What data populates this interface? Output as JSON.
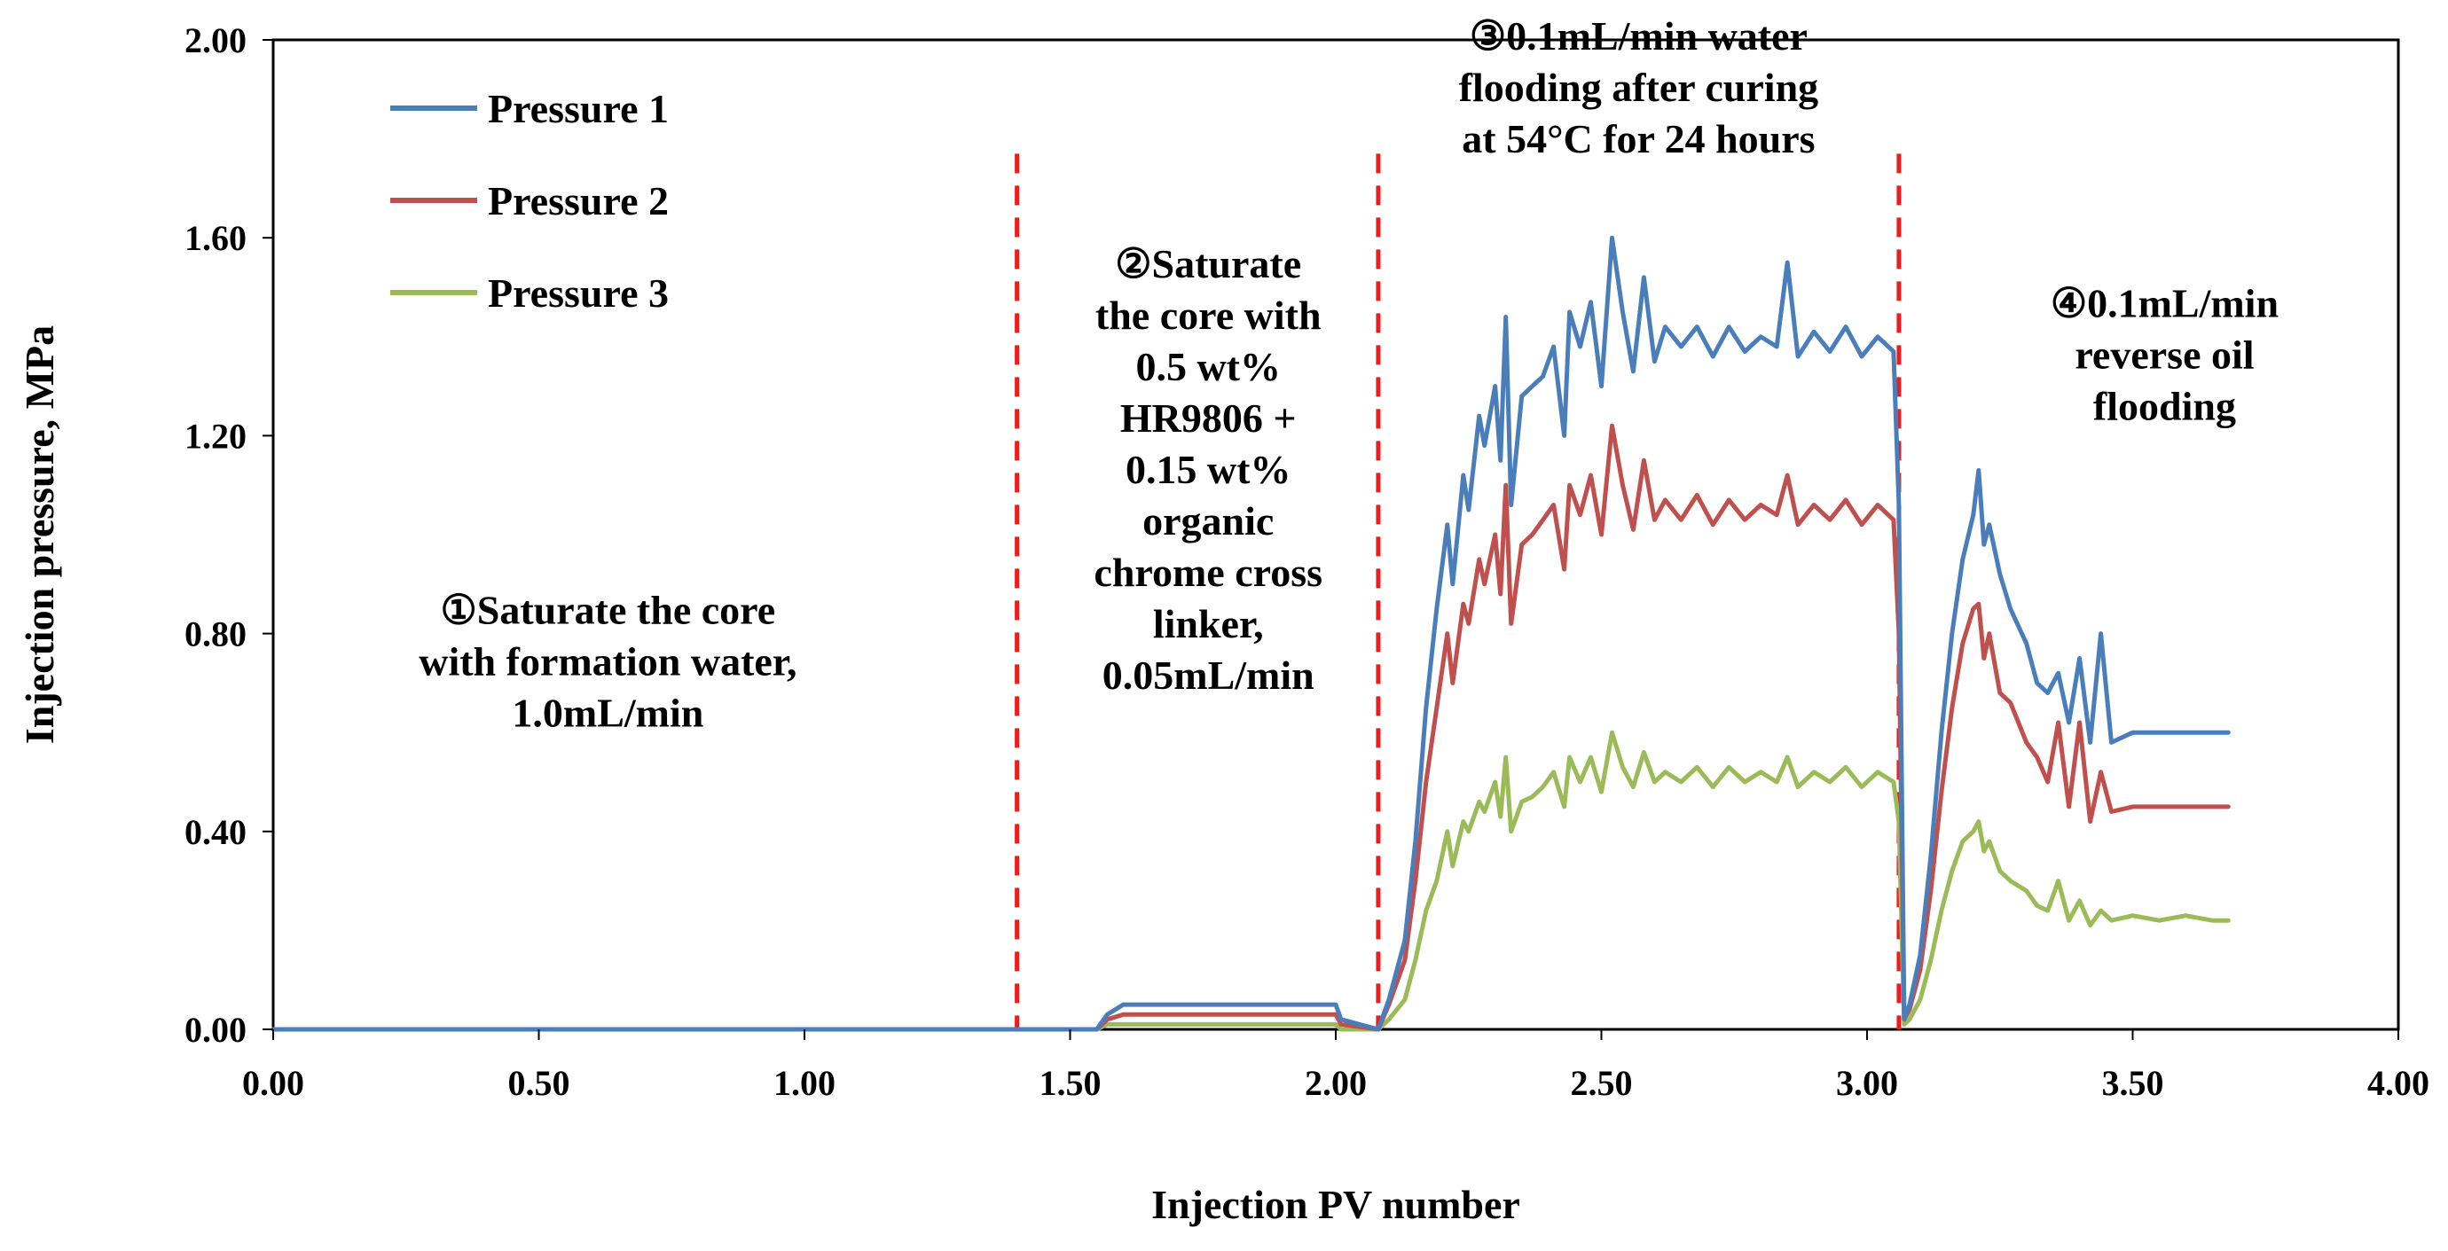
{
  "chart_data": {
    "type": "line",
    "title": "",
    "xlabel": "Injection PV number",
    "ylabel": "Injection pressure, MPa",
    "xlim": [
      0,
      4
    ],
    "ylim": [
      0,
      2
    ],
    "grid": false,
    "legend_position": "top-left",
    "x_tick_labels": [
      "0.00",
      "0.50",
      "1.00",
      "1.50",
      "2.00",
      "2.50",
      "3.00",
      "3.50",
      "4.00"
    ],
    "y_tick_labels": [
      "0.00",
      "0.40",
      "0.80",
      "1.20",
      "1.60",
      "2.00"
    ],
    "stage_boundaries": [
      1.4,
      2.08,
      3.06
    ],
    "annotations": [
      {
        "x": 0.63,
        "y": 0.82,
        "lines": [
          "①Saturate the core",
          "with formation water,",
          "1.0mL/min"
        ]
      },
      {
        "x": 1.76,
        "y": 1.52,
        "lines": [
          "②Saturate",
          "the core with",
          "0.5 wt%",
          "HR9806 +",
          "0.15 wt%",
          "organic",
          "chrome cross",
          "linker,",
          "0.05mL/min"
        ]
      },
      {
        "x": 2.57,
        "y": 1.98,
        "lines": [
          "③0.1mL/min water",
          "flooding after curing",
          "at 54°C for 24 hours"
        ]
      },
      {
        "x": 3.56,
        "y": 1.44,
        "lines": [
          "④0.1mL/min",
          "reverse oil",
          "flooding"
        ]
      }
    ],
    "series": [
      {
        "name": "Pressure 1",
        "color": "#4a7ebb",
        "x": [
          0.0,
          1.4,
          1.55,
          1.57,
          1.6,
          2.0,
          2.01,
          2.08,
          2.1,
          2.13,
          2.15,
          2.17,
          2.19,
          2.21,
          2.22,
          2.24,
          2.25,
          2.27,
          2.28,
          2.3,
          2.31,
          2.32,
          2.33,
          2.35,
          2.37,
          2.39,
          2.41,
          2.43,
          2.44,
          2.46,
          2.48,
          2.5,
          2.52,
          2.54,
          2.56,
          2.58,
          2.6,
          2.62,
          2.65,
          2.68,
          2.71,
          2.74,
          2.77,
          2.8,
          2.83,
          2.85,
          2.87,
          2.9,
          2.93,
          2.96,
          2.99,
          3.02,
          3.05,
          3.06,
          3.07,
          3.08,
          3.1,
          3.12,
          3.14,
          3.16,
          3.18,
          3.2,
          3.21,
          3.22,
          3.23,
          3.25,
          3.27,
          3.3,
          3.32,
          3.34,
          3.36,
          3.38,
          3.4,
          3.42,
          3.44,
          3.46,
          3.5,
          3.55,
          3.6,
          3.65,
          3.68
        ],
        "y": [
          0.0,
          0.0,
          0.0,
          0.03,
          0.05,
          0.05,
          0.02,
          0.0,
          0.06,
          0.18,
          0.38,
          0.65,
          0.85,
          1.02,
          0.9,
          1.12,
          1.05,
          1.24,
          1.18,
          1.3,
          1.15,
          1.44,
          1.06,
          1.28,
          1.3,
          1.32,
          1.38,
          1.2,
          1.45,
          1.38,
          1.47,
          1.3,
          1.6,
          1.45,
          1.33,
          1.52,
          1.35,
          1.42,
          1.38,
          1.42,
          1.36,
          1.42,
          1.37,
          1.4,
          1.38,
          1.55,
          1.36,
          1.41,
          1.37,
          1.42,
          1.36,
          1.4,
          1.37,
          1.06,
          0.02,
          0.05,
          0.15,
          0.35,
          0.6,
          0.8,
          0.95,
          1.04,
          1.13,
          0.98,
          1.02,
          0.92,
          0.85,
          0.78,
          0.7,
          0.68,
          0.72,
          0.62,
          0.75,
          0.58,
          0.8,
          0.58,
          0.6,
          0.6,
          0.6,
          0.6,
          0.6
        ]
      },
      {
        "name": "Pressure 2",
        "color": "#c0504d",
        "x": [
          0.0,
          1.4,
          1.55,
          1.57,
          1.6,
          2.0,
          2.01,
          2.08,
          2.1,
          2.13,
          2.15,
          2.17,
          2.19,
          2.21,
          2.22,
          2.24,
          2.25,
          2.27,
          2.28,
          2.3,
          2.31,
          2.32,
          2.33,
          2.35,
          2.37,
          2.39,
          2.41,
          2.43,
          2.44,
          2.46,
          2.48,
          2.5,
          2.52,
          2.54,
          2.56,
          2.58,
          2.6,
          2.62,
          2.65,
          2.68,
          2.71,
          2.74,
          2.77,
          2.8,
          2.83,
          2.85,
          2.87,
          2.9,
          2.93,
          2.96,
          2.99,
          3.02,
          3.05,
          3.06,
          3.07,
          3.08,
          3.1,
          3.12,
          3.14,
          3.16,
          3.18,
          3.2,
          3.21,
          3.22,
          3.23,
          3.25,
          3.27,
          3.3,
          3.32,
          3.34,
          3.36,
          3.38,
          3.4,
          3.42,
          3.44,
          3.46,
          3.5,
          3.55,
          3.6,
          3.65,
          3.68
        ],
        "y": [
          0.0,
          0.0,
          0.0,
          0.02,
          0.03,
          0.03,
          0.01,
          0.0,
          0.05,
          0.14,
          0.3,
          0.5,
          0.65,
          0.8,
          0.7,
          0.86,
          0.82,
          0.95,
          0.9,
          1.0,
          0.88,
          1.1,
          0.82,
          0.98,
          1.0,
          1.03,
          1.06,
          0.93,
          1.1,
          1.04,
          1.12,
          1.0,
          1.22,
          1.1,
          1.01,
          1.15,
          1.03,
          1.07,
          1.03,
          1.08,
          1.02,
          1.07,
          1.03,
          1.06,
          1.04,
          1.12,
          1.02,
          1.06,
          1.03,
          1.07,
          1.02,
          1.06,
          1.03,
          0.8,
          0.02,
          0.04,
          0.12,
          0.28,
          0.48,
          0.65,
          0.78,
          0.85,
          0.86,
          0.75,
          0.8,
          0.68,
          0.66,
          0.58,
          0.55,
          0.5,
          0.62,
          0.45,
          0.62,
          0.42,
          0.52,
          0.44,
          0.45,
          0.45,
          0.45,
          0.45,
          0.45
        ]
      },
      {
        "name": "Pressure 3",
        "color": "#9bbb59",
        "x": [
          0.0,
          1.4,
          1.55,
          1.57,
          1.6,
          2.0,
          2.01,
          2.08,
          2.1,
          2.13,
          2.15,
          2.17,
          2.19,
          2.21,
          2.22,
          2.24,
          2.25,
          2.27,
          2.28,
          2.3,
          2.31,
          2.32,
          2.33,
          2.35,
          2.37,
          2.39,
          2.41,
          2.43,
          2.44,
          2.46,
          2.48,
          2.5,
          2.52,
          2.54,
          2.56,
          2.58,
          2.6,
          2.62,
          2.65,
          2.68,
          2.71,
          2.74,
          2.77,
          2.8,
          2.83,
          2.85,
          2.87,
          2.9,
          2.93,
          2.96,
          2.99,
          3.02,
          3.05,
          3.06,
          3.07,
          3.08,
          3.1,
          3.12,
          3.14,
          3.16,
          3.18,
          3.2,
          3.21,
          3.22,
          3.23,
          3.25,
          3.27,
          3.3,
          3.32,
          3.34,
          3.36,
          3.38,
          3.4,
          3.42,
          3.44,
          3.46,
          3.5,
          3.55,
          3.6,
          3.65,
          3.68
        ],
        "y": [
          0.0,
          0.0,
          0.0,
          0.01,
          0.01,
          0.01,
          0.0,
          0.0,
          0.02,
          0.06,
          0.14,
          0.24,
          0.3,
          0.4,
          0.33,
          0.42,
          0.4,
          0.46,
          0.44,
          0.5,
          0.43,
          0.55,
          0.4,
          0.46,
          0.47,
          0.49,
          0.52,
          0.45,
          0.55,
          0.5,
          0.55,
          0.48,
          0.6,
          0.53,
          0.49,
          0.56,
          0.5,
          0.52,
          0.5,
          0.53,
          0.49,
          0.53,
          0.5,
          0.52,
          0.5,
          0.55,
          0.49,
          0.52,
          0.5,
          0.53,
          0.49,
          0.52,
          0.5,
          0.42,
          0.01,
          0.02,
          0.06,
          0.14,
          0.24,
          0.32,
          0.38,
          0.4,
          0.42,
          0.36,
          0.38,
          0.32,
          0.3,
          0.28,
          0.25,
          0.24,
          0.3,
          0.22,
          0.26,
          0.21,
          0.24,
          0.22,
          0.23,
          0.22,
          0.23,
          0.22,
          0.22
        ]
      }
    ]
  }
}
